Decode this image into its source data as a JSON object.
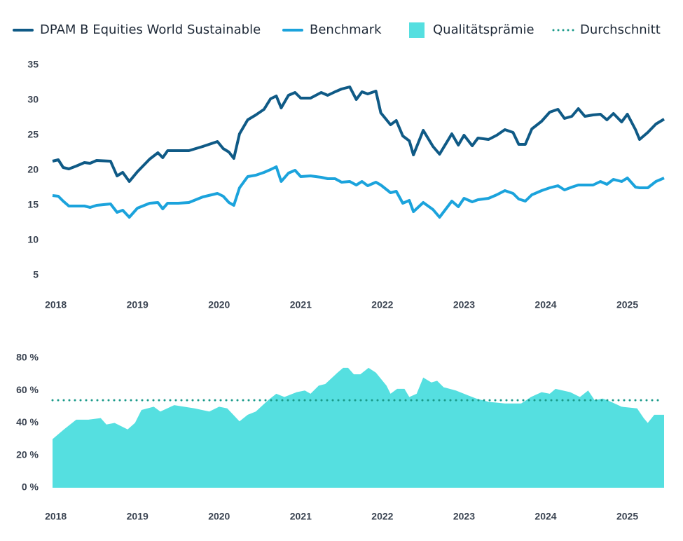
{
  "chart_data": [
    {
      "type": "line",
      "x": [
        2017.96,
        2018.03,
        2018.09,
        2018.16,
        2018.25,
        2018.35,
        2018.42,
        2018.5,
        2018.67,
        2018.75,
        2018.82,
        2018.9,
        2019.0,
        2019.15,
        2019.25,
        2019.31,
        2019.37,
        2019.5,
        2019.63,
        2019.8,
        2019.98,
        2020.05,
        2020.12,
        2020.18,
        2020.25,
        2020.35,
        2020.45,
        2020.55,
        2020.63,
        2020.7,
        2020.76,
        2020.85,
        2020.93,
        2021.0,
        2021.12,
        2021.25,
        2021.33,
        2021.42,
        2021.5,
        2021.6,
        2021.68,
        2021.75,
        2021.82,
        2021.92,
        2021.98,
        2022.1,
        2022.17,
        2022.25,
        2022.33,
        2022.38,
        2022.5,
        2022.62,
        2022.7,
        2022.85,
        2022.93,
        2023.0,
        2023.1,
        2023.17,
        2023.3,
        2023.4,
        2023.5,
        2023.6,
        2023.67,
        2023.75,
        2023.83,
        2023.95,
        2024.05,
        2024.15,
        2024.23,
        2024.32,
        2024.4,
        2024.48,
        2024.58,
        2024.67,
        2024.75,
        2024.83,
        2024.93,
        2025.0,
        2025.1,
        2025.15,
        2025.25,
        2025.35,
        2025.45
      ],
      "series": [
        {
          "name": "DPAM B Equities World Sustainable",
          "color": "#0f5a86",
          "values": [
            21.3,
            21.5,
            20.4,
            20.2,
            20.6,
            21.1,
            21.0,
            21.4,
            21.3,
            19.2,
            19.7,
            18.4,
            19.8,
            21.6,
            22.5,
            21.8,
            22.8,
            22.8,
            22.8,
            23.4,
            24.1,
            23.1,
            22.6,
            21.7,
            25.2,
            27.2,
            27.9,
            28.7,
            30.2,
            30.6,
            28.9,
            30.7,
            31.1,
            30.3,
            30.3,
            31.1,
            30.7,
            31.2,
            31.6,
            31.9,
            30.1,
            31.2,
            30.9,
            31.3,
            28.2,
            26.5,
            27.1,
            24.9,
            24.2,
            22.2,
            25.7,
            23.4,
            22.3,
            25.2,
            23.6,
            25.0,
            23.5,
            24.6,
            24.4,
            25.0,
            25.8,
            25.4,
            23.7,
            23.7,
            25.9,
            27.0,
            28.3,
            28.7,
            27.4,
            27.7,
            28.8,
            27.7,
            27.9,
            28.0,
            27.2,
            28.1,
            26.9,
            28.0,
            25.8,
            24.4,
            25.4,
            26.6,
            27.3
          ]
        },
        {
          "name": "Benchmark",
          "color": "#1ba3dc",
          "values": [
            16.4,
            16.3,
            15.6,
            14.9,
            14.9,
            14.9,
            14.7,
            15.0,
            15.2,
            14.0,
            14.3,
            13.3,
            14.6,
            15.3,
            15.4,
            14.5,
            15.3,
            15.3,
            15.4,
            16.2,
            16.7,
            16.3,
            15.4,
            15.0,
            17.5,
            19.1,
            19.3,
            19.7,
            20.1,
            20.5,
            18.4,
            19.6,
            20.0,
            19.1,
            19.2,
            19.0,
            18.8,
            18.8,
            18.3,
            18.4,
            17.9,
            18.4,
            17.8,
            18.3,
            17.9,
            16.8,
            17.0,
            15.3,
            15.7,
            14.1,
            15.4,
            14.4,
            13.3,
            15.6,
            14.8,
            16.0,
            15.5,
            15.8,
            16.0,
            16.5,
            17.1,
            16.7,
            15.9,
            15.6,
            16.5,
            17.1,
            17.5,
            17.8,
            17.2,
            17.6,
            17.9,
            17.9,
            17.9,
            18.4,
            18.0,
            18.7,
            18.4,
            18.9,
            17.6,
            17.5,
            17.5,
            18.4,
            18.9
          ]
        }
      ],
      "xlim": [
        2017.96,
        2025.45
      ],
      "xticks": [
        2018,
        2019,
        2020,
        2021,
        2022,
        2023,
        2024,
        2025
      ],
      "ylim": [
        5,
        35
      ],
      "yticks": [
        5,
        10,
        15,
        20,
        25,
        30,
        35
      ]
    },
    {
      "type": "area",
      "x": [
        2017.96,
        2018.1,
        2018.25,
        2018.4,
        2018.55,
        2018.62,
        2018.72,
        2018.88,
        2018.97,
        2019.05,
        2019.2,
        2019.28,
        2019.45,
        2019.7,
        2019.88,
        2020.0,
        2020.1,
        2020.25,
        2020.35,
        2020.45,
        2020.6,
        2020.7,
        2020.8,
        2020.95,
        2021.05,
        2021.12,
        2021.22,
        2021.3,
        2021.45,
        2021.52,
        2021.58,
        2021.65,
        2021.73,
        2021.83,
        2021.92,
        2022.05,
        2022.1,
        2022.18,
        2022.27,
        2022.33,
        2022.42,
        2022.5,
        2022.6,
        2022.67,
        2022.75,
        2022.9,
        2023.05,
        2023.15,
        2023.3,
        2023.5,
        2023.7,
        2023.82,
        2023.95,
        2024.05,
        2024.12,
        2024.3,
        2024.42,
        2024.52,
        2024.6,
        2024.7,
        2024.8,
        2024.93,
        2025.12,
        2025.2,
        2025.25,
        2025.33,
        2025.45
      ],
      "series": [
        {
          "name": "Qualitätsprämie",
          "color": "#55dfe0",
          "values": [
            30,
            36,
            42,
            42,
            43,
            39,
            40,
            36,
            40,
            48,
            50,
            47,
            51,
            49,
            47,
            50,
            49,
            41,
            45,
            47,
            54,
            58,
            56,
            59,
            60,
            58,
            63,
            64,
            71,
            74,
            74,
            70,
            70,
            74,
            71,
            63,
            58,
            61,
            61,
            56,
            58,
            68,
            65,
            66,
            62,
            60,
            57,
            55,
            53,
            52,
            52,
            56,
            59,
            58,
            61,
            59,
            56,
            60,
            54,
            55,
            53,
            50,
            49,
            43,
            40,
            45,
            45
          ]
        }
      ],
      "average": {
        "name": "Durchschnitt",
        "value": 54,
        "color": "#1a9a8a"
      },
      "xlim": [
        2017.96,
        2025.45
      ],
      "xticks": [
        2018,
        2019,
        2020,
        2021,
        2022,
        2023,
        2024,
        2025
      ],
      "ylim": [
        0,
        80
      ],
      "yticks": [
        {
          "value": 0,
          "label": "0 %"
        },
        {
          "value": 20,
          "label": "20 %"
        },
        {
          "value": 40,
          "label": "40 %"
        },
        {
          "value": 60,
          "label": "60 %"
        },
        {
          "value": 80,
          "label": "80 %"
        }
      ]
    }
  ]
}
